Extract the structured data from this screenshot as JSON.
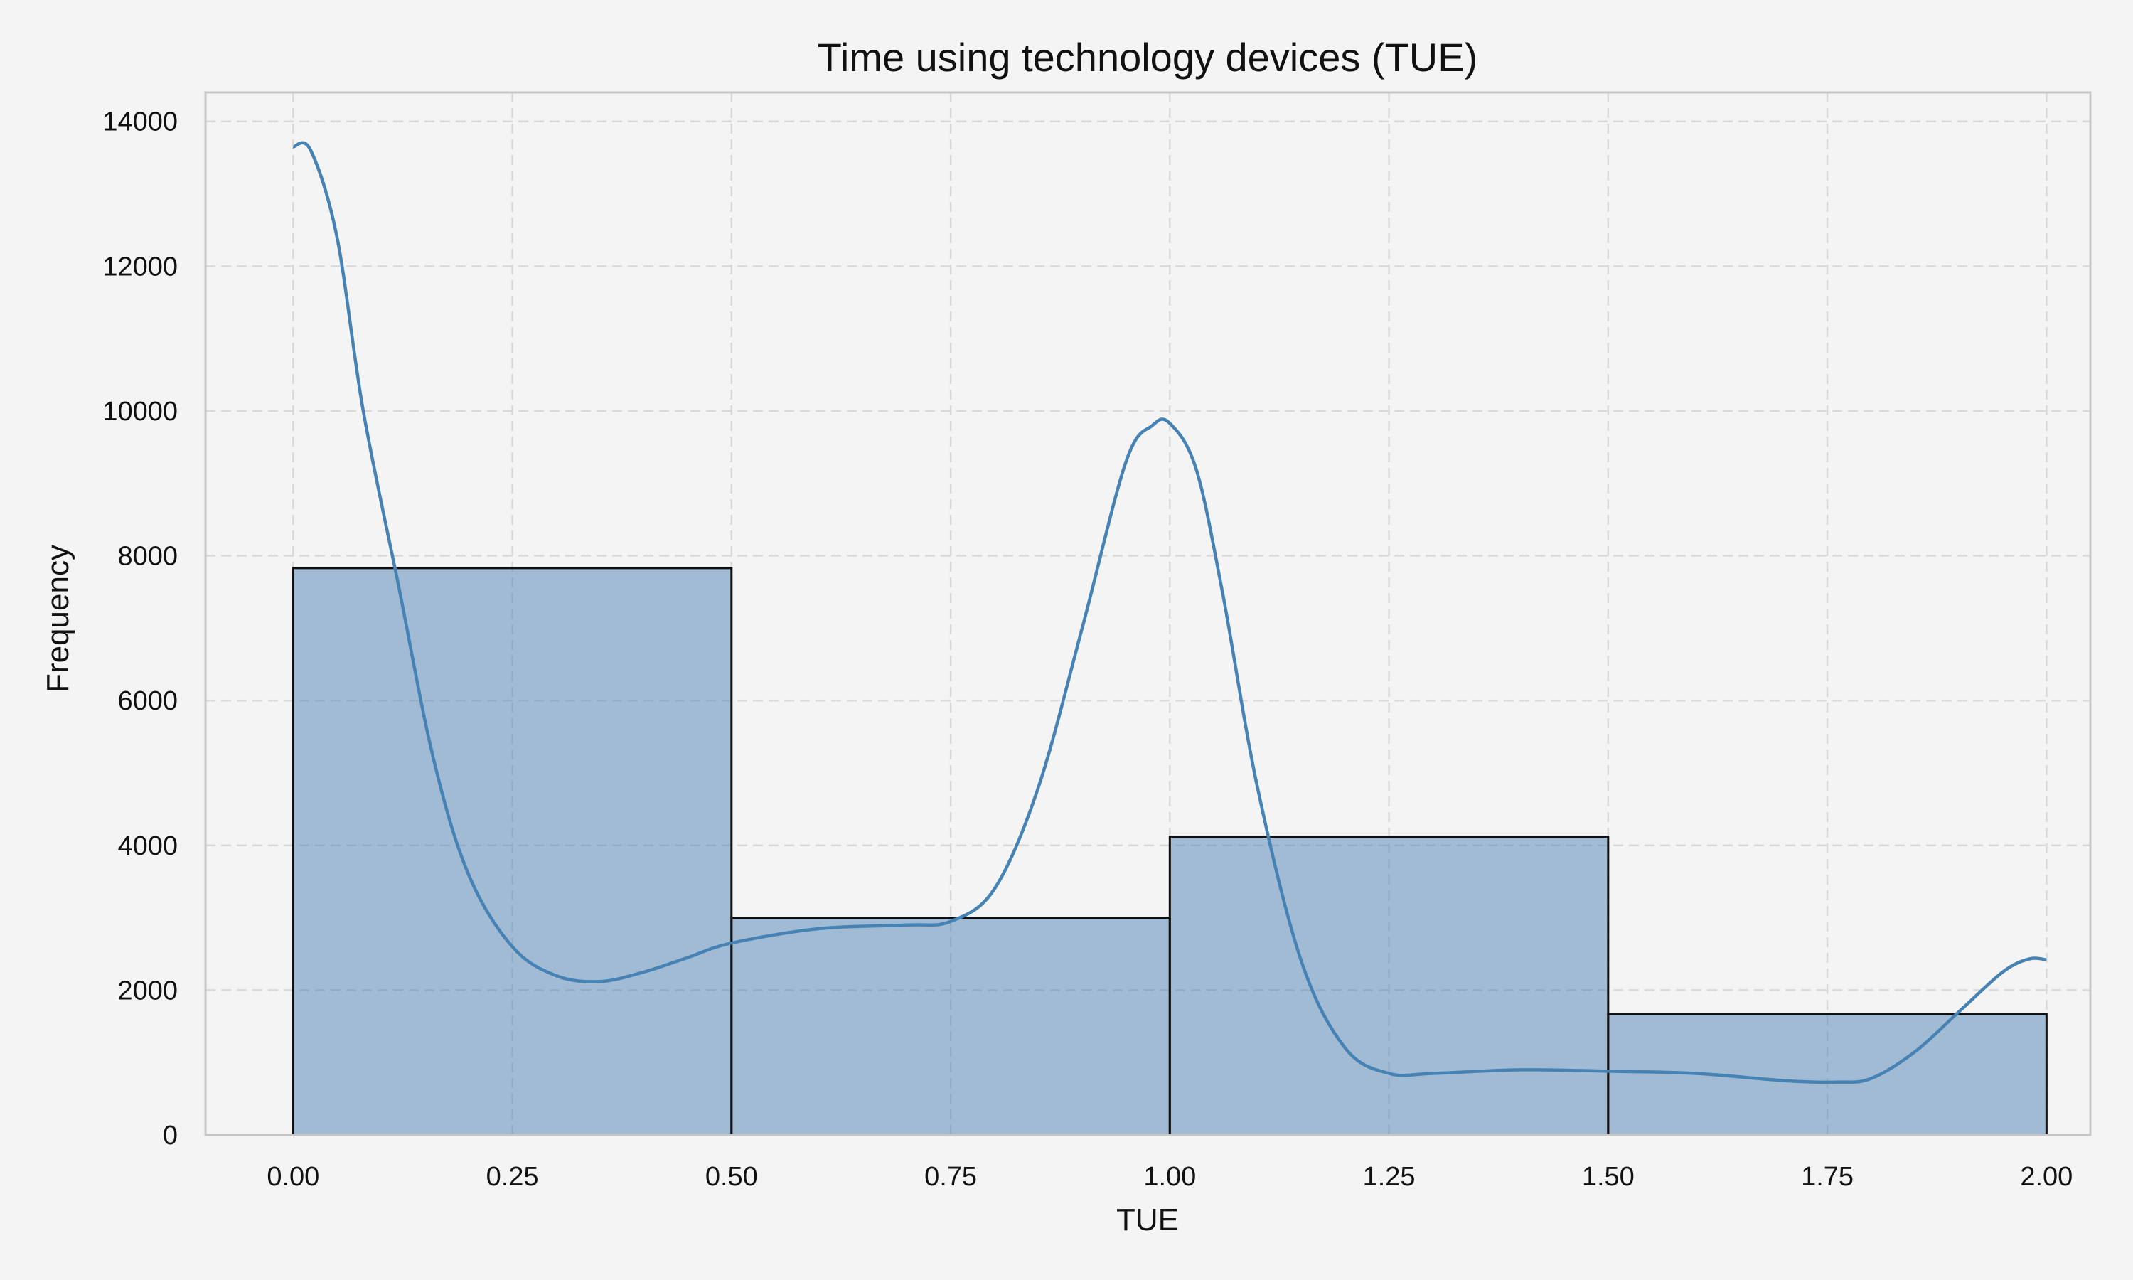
{
  "chart_data": {
    "type": "bar",
    "subtype": "histogram",
    "title": "Time using technology devices (TUE)",
    "xlabel": "TUE",
    "ylabel": "Frequency",
    "xlim": [
      -0.1,
      2.05
    ],
    "ylim": [
      0,
      14400
    ],
    "xticks": [
      0.0,
      0.25,
      0.5,
      0.75,
      1.0,
      1.25,
      1.5,
      1.75,
      2.0
    ],
    "xtick_labels": [
      "0.00",
      "0.25",
      "0.50",
      "0.75",
      "1.00",
      "1.25",
      "1.50",
      "1.75",
      "2.00"
    ],
    "yticks": [
      0,
      2000,
      4000,
      6000,
      8000,
      10000,
      12000,
      14000
    ],
    "ytick_labels": [
      "0",
      "2000",
      "4000",
      "6000",
      "8000",
      "10000",
      "12000",
      "14000"
    ],
    "bins": [
      {
        "start": 0.0,
        "end": 0.5,
        "value": 7830
      },
      {
        "start": 0.5,
        "end": 1.0,
        "value": 3000
      },
      {
        "start": 1.0,
        "end": 1.5,
        "value": 4120
      },
      {
        "start": 1.5,
        "end": 2.0,
        "value": 1670
      }
    ],
    "kde": {
      "x": [
        0.0,
        0.02,
        0.05,
        0.08,
        0.12,
        0.16,
        0.2,
        0.25,
        0.3,
        0.35,
        0.4,
        0.45,
        0.5,
        0.6,
        0.7,
        0.75,
        0.8,
        0.85,
        0.9,
        0.95,
        0.98,
        1.0,
        1.03,
        1.06,
        1.1,
        1.15,
        1.2,
        1.25,
        1.3,
        1.4,
        1.5,
        1.6,
        1.7,
        1.76,
        1.8,
        1.85,
        1.9,
        1.95,
        1.98,
        2.0
      ],
      "y": [
        13650,
        13600,
        12400,
        10000,
        7600,
        5200,
        3600,
        2600,
        2200,
        2120,
        2250,
        2450,
        2650,
        2850,
        2900,
        2950,
        3400,
        4800,
        7000,
        9300,
        9800,
        9830,
        9200,
        7500,
        4800,
        2400,
        1200,
        850,
        850,
        900,
        880,
        850,
        750,
        730,
        780,
        1150,
        1700,
        2250,
        2430,
        2420
      ]
    },
    "grid": true,
    "colors": {
      "bar": "#4f81b5",
      "line": "#4682b4",
      "edge": "#111111",
      "background": "#f4f4f4"
    }
  }
}
